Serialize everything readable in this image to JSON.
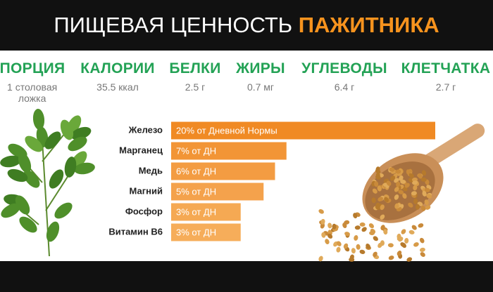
{
  "header": {
    "title": "ПИЩЕВАЯ ЦЕННОСТЬ",
    "title_highlight": "ПАЖИТНИКА"
  },
  "nutrition": [
    {
      "label": "ПОРЦИЯ",
      "value": "1 столовая ложка"
    },
    {
      "label": "КАЛОРИИ",
      "value": "35.5 ккал"
    },
    {
      "label": "БЕЛКИ",
      "value": "2.5 г"
    },
    {
      "label": "ЖИРЫ",
      "value": "0.7 мг"
    },
    {
      "label": "УГЛЕВОДЫ",
      "value": "6.4 г"
    },
    {
      "label": "КЛЕТЧАТКА",
      "value": "2.7 г"
    }
  ],
  "chart_data": {
    "type": "bar",
    "orientation": "horizontal",
    "categories": [
      "Железо",
      "Марганец",
      "Медь",
      "Магний",
      "Фосфор",
      "Витамин B6"
    ],
    "values": [
      20,
      7,
      6,
      5,
      3,
      3
    ],
    "value_labels": [
      "20% от Дневной Нормы",
      "7% от ДН",
      "6% от ДН",
      "5% от ДН",
      "3% от ДН",
      "3% от ДН"
    ],
    "colors": [
      "#f08a24",
      "#f29536",
      "#f39c42",
      "#f4a24c",
      "#f5a953",
      "#f6ad5a"
    ]
  }
}
